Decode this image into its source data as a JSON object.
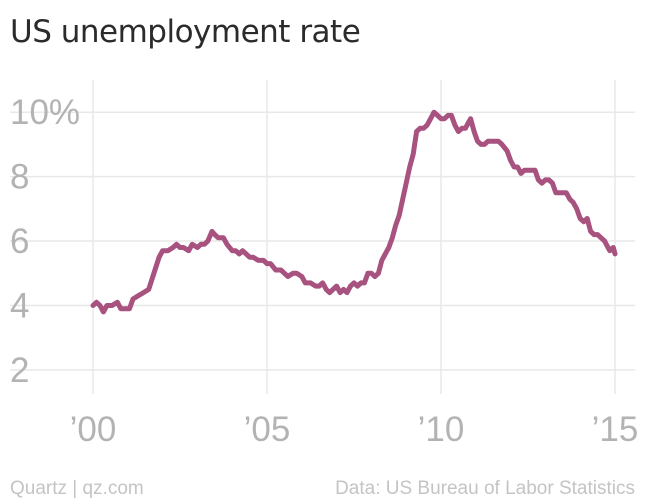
{
  "chart_data": {
    "type": "line",
    "title": "US unemployment rate",
    "xlabel": "",
    "ylabel": "",
    "xlim": [
      2000.0,
      2015.0
    ],
    "ylim": [
      1.5,
      11
    ],
    "yticks": [
      {
        "value": 2,
        "label": "2"
      },
      {
        "value": 4,
        "label": "4"
      },
      {
        "value": 6,
        "label": "6"
      },
      {
        "value": 8,
        "label": "8"
      },
      {
        "value": 10,
        "label": "10%"
      }
    ],
    "xticks": [
      {
        "value": 2000,
        "label": "’00"
      },
      {
        "value": 2005,
        "label": "’05"
      },
      {
        "value": 2010,
        "label": "’10"
      },
      {
        "value": 2015,
        "label": "’15"
      }
    ],
    "grid": true,
    "legend": "none",
    "series": [
      {
        "color": "#a7527f",
        "points": [
          [
            2000.0,
            4.0
          ],
          [
            2000.1,
            4.1
          ],
          [
            2000.2,
            4.0
          ],
          [
            2000.3,
            3.8
          ],
          [
            2000.4,
            4.0
          ],
          [
            2000.55,
            4.0
          ],
          [
            2000.7,
            4.1
          ],
          [
            2000.8,
            3.9
          ],
          [
            2000.95,
            3.9
          ],
          [
            2001.05,
            3.9
          ],
          [
            2001.15,
            4.2
          ],
          [
            2001.3,
            4.3
          ],
          [
            2001.45,
            4.4
          ],
          [
            2001.6,
            4.5
          ],
          [
            2001.75,
            5.0
          ],
          [
            2001.9,
            5.5
          ],
          [
            2002.0,
            5.7
          ],
          [
            2002.15,
            5.7
          ],
          [
            2002.3,
            5.8
          ],
          [
            2002.4,
            5.9
          ],
          [
            2002.5,
            5.8
          ],
          [
            2002.6,
            5.8
          ],
          [
            2002.75,
            5.7
          ],
          [
            2002.85,
            5.9
          ],
          [
            2003.0,
            5.8
          ],
          [
            2003.1,
            5.9
          ],
          [
            2003.2,
            5.9
          ],
          [
            2003.3,
            6.0
          ],
          [
            2003.42,
            6.3
          ],
          [
            2003.5,
            6.2
          ],
          [
            2003.6,
            6.1
          ],
          [
            2003.75,
            6.1
          ],
          [
            2003.85,
            5.9
          ],
          [
            2004.0,
            5.7
          ],
          [
            2004.1,
            5.7
          ],
          [
            2004.2,
            5.6
          ],
          [
            2004.3,
            5.7
          ],
          [
            2004.4,
            5.6
          ],
          [
            2004.5,
            5.5
          ],
          [
            2004.6,
            5.5
          ],
          [
            2004.75,
            5.4
          ],
          [
            2004.9,
            5.4
          ],
          [
            2005.0,
            5.3
          ],
          [
            2005.1,
            5.3
          ],
          [
            2005.25,
            5.1
          ],
          [
            2005.4,
            5.1
          ],
          [
            2005.5,
            5.0
          ],
          [
            2005.6,
            4.9
          ],
          [
            2005.75,
            5.0
          ],
          [
            2005.85,
            5.0
          ],
          [
            2006.0,
            4.9
          ],
          [
            2006.1,
            4.7
          ],
          [
            2006.25,
            4.7
          ],
          [
            2006.4,
            4.6
          ],
          [
            2006.5,
            4.6
          ],
          [
            2006.6,
            4.7
          ],
          [
            2006.7,
            4.5
          ],
          [
            2006.8,
            4.4
          ],
          [
            2006.9,
            4.5
          ],
          [
            2007.0,
            4.6
          ],
          [
            2007.1,
            4.4
          ],
          [
            2007.2,
            4.5
          ],
          [
            2007.3,
            4.4
          ],
          [
            2007.4,
            4.6
          ],
          [
            2007.5,
            4.7
          ],
          [
            2007.6,
            4.6
          ],
          [
            2007.7,
            4.7
          ],
          [
            2007.8,
            4.7
          ],
          [
            2007.9,
            5.0
          ],
          [
            2008.0,
            5.0
          ],
          [
            2008.1,
            4.9
          ],
          [
            2008.2,
            5.0
          ],
          [
            2008.3,
            5.4
          ],
          [
            2008.4,
            5.6
          ],
          [
            2008.5,
            5.8
          ],
          [
            2008.6,
            6.1
          ],
          [
            2008.7,
            6.5
          ],
          [
            2008.8,
            6.8
          ],
          [
            2008.9,
            7.3
          ],
          [
            2009.0,
            7.8
          ],
          [
            2009.1,
            8.3
          ],
          [
            2009.2,
            8.7
          ],
          [
            2009.3,
            9.4
          ],
          [
            2009.4,
            9.5
          ],
          [
            2009.5,
            9.5
          ],
          [
            2009.6,
            9.6
          ],
          [
            2009.7,
            9.8
          ],
          [
            2009.8,
            10.0
          ],
          [
            2009.9,
            9.9
          ],
          [
            2010.0,
            9.8
          ],
          [
            2010.1,
            9.8
          ],
          [
            2010.2,
            9.9
          ],
          [
            2010.3,
            9.9
          ],
          [
            2010.4,
            9.6
          ],
          [
            2010.5,
            9.4
          ],
          [
            2010.6,
            9.5
          ],
          [
            2010.7,
            9.5
          ],
          [
            2010.75,
            9.6
          ],
          [
            2010.85,
            9.8
          ],
          [
            2010.95,
            9.4
          ],
          [
            2011.05,
            9.1
          ],
          [
            2011.15,
            9.0
          ],
          [
            2011.25,
            9.0
          ],
          [
            2011.35,
            9.1
          ],
          [
            2011.5,
            9.1
          ],
          [
            2011.65,
            9.1
          ],
          [
            2011.75,
            9.0
          ],
          [
            2011.9,
            8.8
          ],
          [
            2012.0,
            8.5
          ],
          [
            2012.1,
            8.3
          ],
          [
            2012.2,
            8.3
          ],
          [
            2012.3,
            8.1
          ],
          [
            2012.4,
            8.2
          ],
          [
            2012.5,
            8.2
          ],
          [
            2012.6,
            8.2
          ],
          [
            2012.7,
            8.2
          ],
          [
            2012.8,
            7.9
          ],
          [
            2012.9,
            7.8
          ],
          [
            2013.0,
            7.9
          ],
          [
            2013.1,
            7.9
          ],
          [
            2013.2,
            7.8
          ],
          [
            2013.3,
            7.5
          ],
          [
            2013.4,
            7.5
          ],
          [
            2013.5,
            7.5
          ],
          [
            2013.6,
            7.5
          ],
          [
            2013.7,
            7.3
          ],
          [
            2013.8,
            7.2
          ],
          [
            2013.9,
            7.0
          ],
          [
            2014.0,
            6.7
          ],
          [
            2014.1,
            6.6
          ],
          [
            2014.2,
            6.7
          ],
          [
            2014.3,
            6.3
          ],
          [
            2014.4,
            6.2
          ],
          [
            2014.5,
            6.2
          ],
          [
            2014.6,
            6.1
          ],
          [
            2014.7,
            6.0
          ],
          [
            2014.8,
            5.8
          ],
          [
            2014.85,
            5.7
          ],
          [
            2014.95,
            5.8
          ],
          [
            2015.0,
            5.6
          ]
        ]
      }
    ]
  },
  "footer": {
    "left": "Quartz | qz.com",
    "right": "Data: US Bureau of Labor Statistics"
  }
}
